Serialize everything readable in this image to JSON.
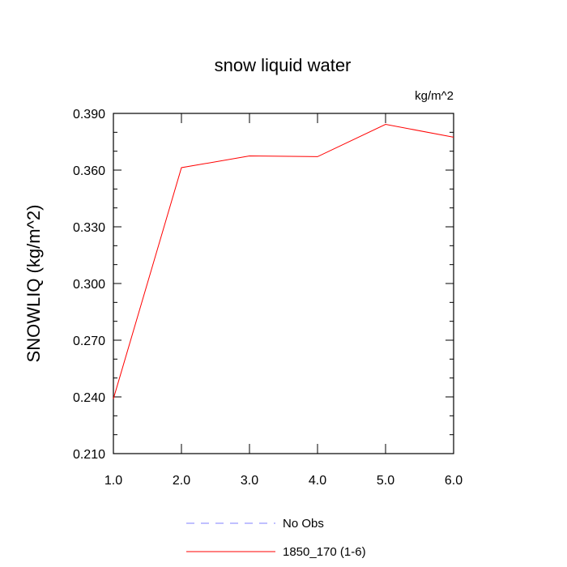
{
  "chart_data": {
    "type": "line",
    "title": "snow liquid water",
    "units": "kg/m^2",
    "xlabel": "",
    "ylabel": "SNOWLIQ  (kg/m^2)",
    "xlim": [
      1.0,
      6.0
    ],
    "ylim": [
      0.21,
      0.39
    ],
    "x_ticks": [
      "1.0",
      "2.0",
      "3.0",
      "4.0",
      "5.0",
      "6.0"
    ],
    "y_ticks": [
      "0.210",
      "0.240",
      "0.270",
      "0.300",
      "0.330",
      "0.360",
      "0.390"
    ],
    "grid": false,
    "legend_placement": "bottom-center",
    "series": [
      {
        "name": "No Obs",
        "color": "#8080ff",
        "style": "dashed",
        "x": [],
        "y": []
      },
      {
        "name": "1850_170 (1-6)",
        "color": "#ff0000",
        "style": "solid",
        "x": [
          1.0,
          2.0,
          3.0,
          4.0,
          5.0,
          6.0
        ],
        "y": [
          0.239,
          0.3613,
          0.3675,
          0.3671,
          0.3842,
          0.3774
        ]
      }
    ]
  }
}
